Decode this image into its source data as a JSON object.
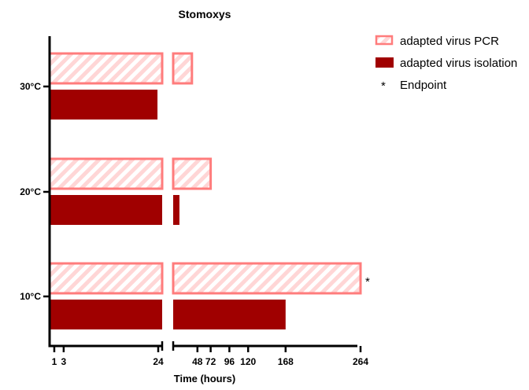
{
  "chart_data": {
    "type": "bar",
    "orientation": "horizontal",
    "title": "Stomoxys",
    "xlabel": "Time (hours)",
    "ylabel": "",
    "x_axis": {
      "broken": true,
      "segments": [
        {
          "range": [
            0,
            24
          ],
          "ticks": [
            1,
            3,
            24
          ]
        },
        {
          "range": [
            24,
            264
          ],
          "ticks": [
            48,
            72,
            96,
            120,
            168,
            264
          ]
        }
      ]
    },
    "categories": [
      "30°C",
      "20°C",
      "10°C"
    ],
    "series": [
      {
        "name": "adapted virus PCR",
        "style": "hatched",
        "color": "#ff7c7c",
        "values": [
          48,
          72,
          264
        ]
      },
      {
        "name": "adapted virus isolation",
        "style": "solid",
        "color": "#a00000",
        "values": [
          23,
          32,
          168
        ]
      }
    ],
    "legend": {
      "placement": "top-right",
      "items": [
        {
          "label": "adapted virus PCR",
          "marker": "hatched"
        },
        {
          "label": "adapted virus isolation",
          "marker": "solid"
        },
        {
          "label": "Endpoint",
          "marker": "*"
        }
      ]
    },
    "annotations": [
      {
        "category": "10°C",
        "series": "adapted virus PCR",
        "text": "*"
      }
    ],
    "grid": false
  }
}
